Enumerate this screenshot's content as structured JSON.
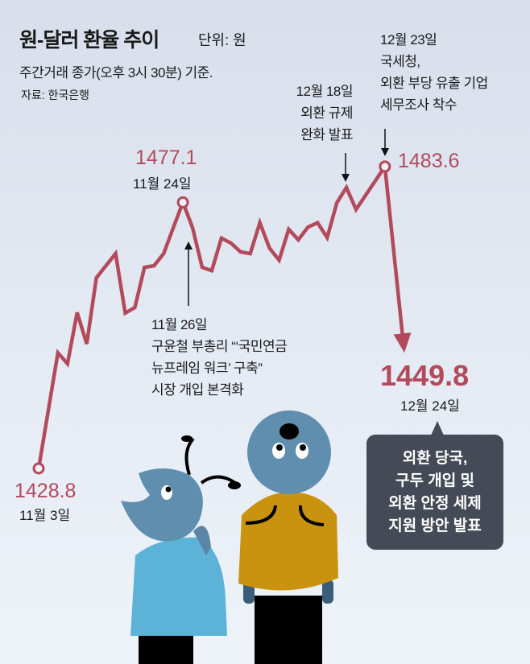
{
  "header": {
    "title": "원-달러 환율 추이",
    "unit": "단위: 원",
    "subtitle": "주간거래 종가(오후 3시 30분) 기준.",
    "source": "자료: 한국은행"
  },
  "chart_data": {
    "type": "line",
    "title": "원-달러 환율 추이",
    "ylabel": "단위: 원",
    "grid": false,
    "values": [
      1428.8,
      1439.3,
      1449.8,
      1447.8,
      1457.1,
      1451.4,
      1463.4,
      1465.6,
      1467.8,
      1457.0,
      1458.0,
      1465.3,
      1465.6,
      1467.8,
      1472.5,
      1477.1,
      1472.5,
      1465.3,
      1464.7,
      1470.6,
      1469.7,
      1468.1,
      1467.8,
      1473.4,
      1468.8,
      1466.6,
      1472.2,
      1470.3,
      1472.6,
      1473.4,
      1470.7,
      1477.0,
      1479.8,
      1475.8,
      1478.4,
      1481.0,
      1483.6,
      1449.8
    ],
    "line_color": "#b24a5c",
    "labeled_points": [
      {
        "value": "1428.8",
        "date": "11월 3일"
      },
      {
        "value": "1477.1",
        "date": "11월 24일"
      },
      {
        "value": "1483.6",
        "date": ""
      },
      {
        "value": "1449.8",
        "date": "12월 24일"
      }
    ],
    "annotations": [
      {
        "lines": [
          "11월 26일",
          "구윤철 부총리 “‘국민연금",
          "뉴프레임 워크’ 구축”",
          "시장 개입 본격화"
        ]
      },
      {
        "lines": [
          "12월 18일",
          "외환 규제",
          "완화 발표"
        ]
      },
      {
        "lines": [
          "12월 23일",
          "국세청,",
          "외환 부당 유출 기업",
          "세무조사 착수"
        ]
      }
    ],
    "callout": {
      "lines": [
        "외환 당국,",
        "구두 개입 및",
        "외환 안정 세제",
        "지원 방안 발표"
      ],
      "color": "#444a56"
    }
  }
}
